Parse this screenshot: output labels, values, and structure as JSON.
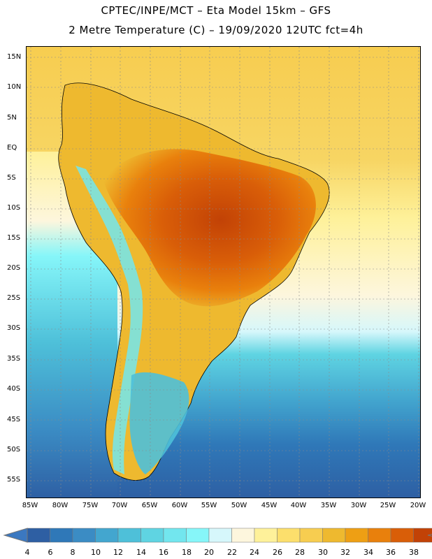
{
  "header": {
    "line1": "CPTEC/INPE/MCT –  Eta Model 15km – GFS",
    "line2": "2 Metre Temperature (C) – 19/09/2020 12UTC fct=4h"
  },
  "map": {
    "lat_labels": [
      "15N",
      "10N",
      "5N",
      "EQ",
      "5S",
      "10S",
      "15S",
      "20S",
      "25S",
      "30S",
      "35S",
      "40S",
      "45S",
      "50S",
      "55S"
    ],
    "lon_labels": [
      "85W",
      "80W",
      "75W",
      "70W",
      "65W",
      "60W",
      "55W",
      "50W",
      "45W",
      "40W",
      "35W",
      "30W",
      "25W",
      "20W"
    ]
  },
  "colorbar": {
    "labels": [
      "4",
      "6",
      "8",
      "10",
      "12",
      "14",
      "16",
      "18",
      "20",
      "22",
      "24",
      "26",
      "28",
      "30",
      "32",
      "34",
      "36",
      "38"
    ],
    "colors": [
      "#2e5fa3",
      "#2f78b8",
      "#3b8cc4",
      "#43a6cf",
      "#4ec0d9",
      "#5fd4e2",
      "#72e6ee",
      "#86f6f9",
      "#d6f7fb",
      "#fdf6dd",
      "#fef19a",
      "#fcdf6c",
      "#f7cd50",
      "#eeb92f",
      "#ee9f14",
      "#e9800c",
      "#d95e08",
      "#c24206",
      "#b0420a"
    ],
    "low_color": "#3b78c0",
    "high_color": "#b8400a"
  }
}
